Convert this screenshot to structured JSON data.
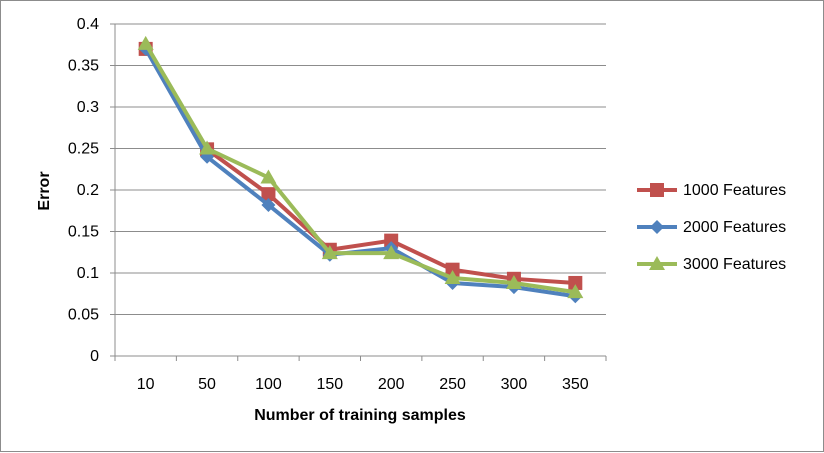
{
  "chart_data": {
    "type": "line",
    "title": "",
    "xlabel": "Number of training samples",
    "ylabel": "Error",
    "categories": [
      "10",
      "50",
      "100",
      "150",
      "200",
      "250",
      "300",
      "350"
    ],
    "y_ticks": [
      "0",
      "0.05",
      "0.1",
      "0.15",
      "0.2",
      "0.25",
      "0.3",
      "0.35",
      "0.4"
    ],
    "ylim": [
      0,
      0.4
    ],
    "grid": true,
    "legend_position": "right",
    "series": [
      {
        "name": "1000 Features",
        "color": "#c0504d",
        "marker": "square",
        "values": [
          0.37,
          0.249,
          0.195,
          0.128,
          0.139,
          0.104,
          0.093,
          0.088
        ]
      },
      {
        "name": "2000 Features",
        "color": "#4f81bd",
        "marker": "diamond",
        "values": [
          0.37,
          0.24,
          0.182,
          0.122,
          0.13,
          0.088,
          0.083,
          0.072
        ]
      },
      {
        "name": "3000 Features",
        "color": "#9bbb59",
        "marker": "triangle",
        "values": [
          0.376,
          0.25,
          0.215,
          0.124,
          0.124,
          0.094,
          0.088,
          0.077
        ]
      }
    ]
  }
}
